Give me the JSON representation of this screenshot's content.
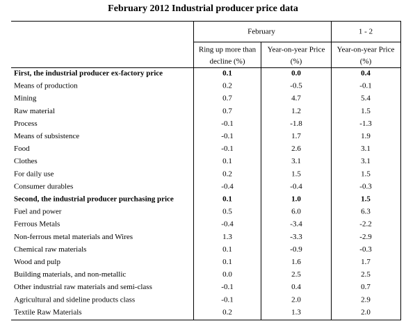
{
  "title": "February 2012 Industrial producer price data",
  "table": {
    "group_headers": [
      "February",
      "1 - 2"
    ],
    "column_headers": [
      [
        "Ring up more than",
        "decline (%)"
      ],
      [
        "Year-on-year Price",
        "(%)"
      ],
      [
        "Year-on-year Price",
        "(%)"
      ]
    ],
    "rows": [
      {
        "label": "First, the industrial producer ex-factory price",
        "values": [
          "0.1",
          "0.0",
          "0.4"
        ],
        "bold": true
      },
      {
        "label": "Means of production",
        "values": [
          "0.2",
          "-0.5",
          "-0.1"
        ]
      },
      {
        "label": "Mining",
        "values": [
          "0.7",
          "4.7",
          "5.4"
        ]
      },
      {
        "label": "Raw material",
        "values": [
          "0.7",
          "1.2",
          "1.5"
        ]
      },
      {
        "label": "Process",
        "values": [
          "-0.1",
          "-1.8",
          "-1.3"
        ]
      },
      {
        "label": "Means of subsistence",
        "values": [
          "-0.1",
          "1.7",
          "1.9"
        ]
      },
      {
        "label": "Food",
        "values": [
          "-0.1",
          "2.6",
          "3.1"
        ]
      },
      {
        "label": "Clothes",
        "values": [
          "0.1",
          "3.1",
          "3.1"
        ]
      },
      {
        "label": "For daily use",
        "values": [
          "0.2",
          "1.5",
          "1.5"
        ]
      },
      {
        "label": "Consumer durables",
        "values": [
          "-0.4",
          "-0.4",
          "-0.3"
        ]
      },
      {
        "label": "Second, the industrial producer purchasing price",
        "values": [
          "0.1",
          "1.0",
          "1.5"
        ],
        "bold": true
      },
      {
        "label": "Fuel and power",
        "values": [
          "0.5",
          "6.0",
          "6.3"
        ]
      },
      {
        "label": "Ferrous Metals",
        "values": [
          "-0.4",
          "-3.4",
          "-2.2"
        ]
      },
      {
        "label": "Non-ferrous metal materials and Wires",
        "values": [
          "1.3",
          "-3.3",
          "-2.9"
        ]
      },
      {
        "label": "Chemical raw materials",
        "values": [
          "0.1",
          "-0.9",
          "-0.3"
        ]
      },
      {
        "label": "Wood and pulp",
        "values": [
          "0.1",
          "1.6",
          "1.7"
        ]
      },
      {
        "label": "Building materials, and non-metallic",
        "values": [
          "0.0",
          "2.5",
          "2.5"
        ]
      },
      {
        "label": "Other industrial raw materials and semi-class",
        "values": [
          "-0.1",
          "0.4",
          "0.7"
        ]
      },
      {
        "label": "Agricultural and sideline products class",
        "values": [
          "-0.1",
          "2.0",
          "2.9"
        ]
      },
      {
        "label": "Textile Raw Materials",
        "values": [
          "0.2",
          "1.3",
          "2.0"
        ]
      }
    ]
  }
}
